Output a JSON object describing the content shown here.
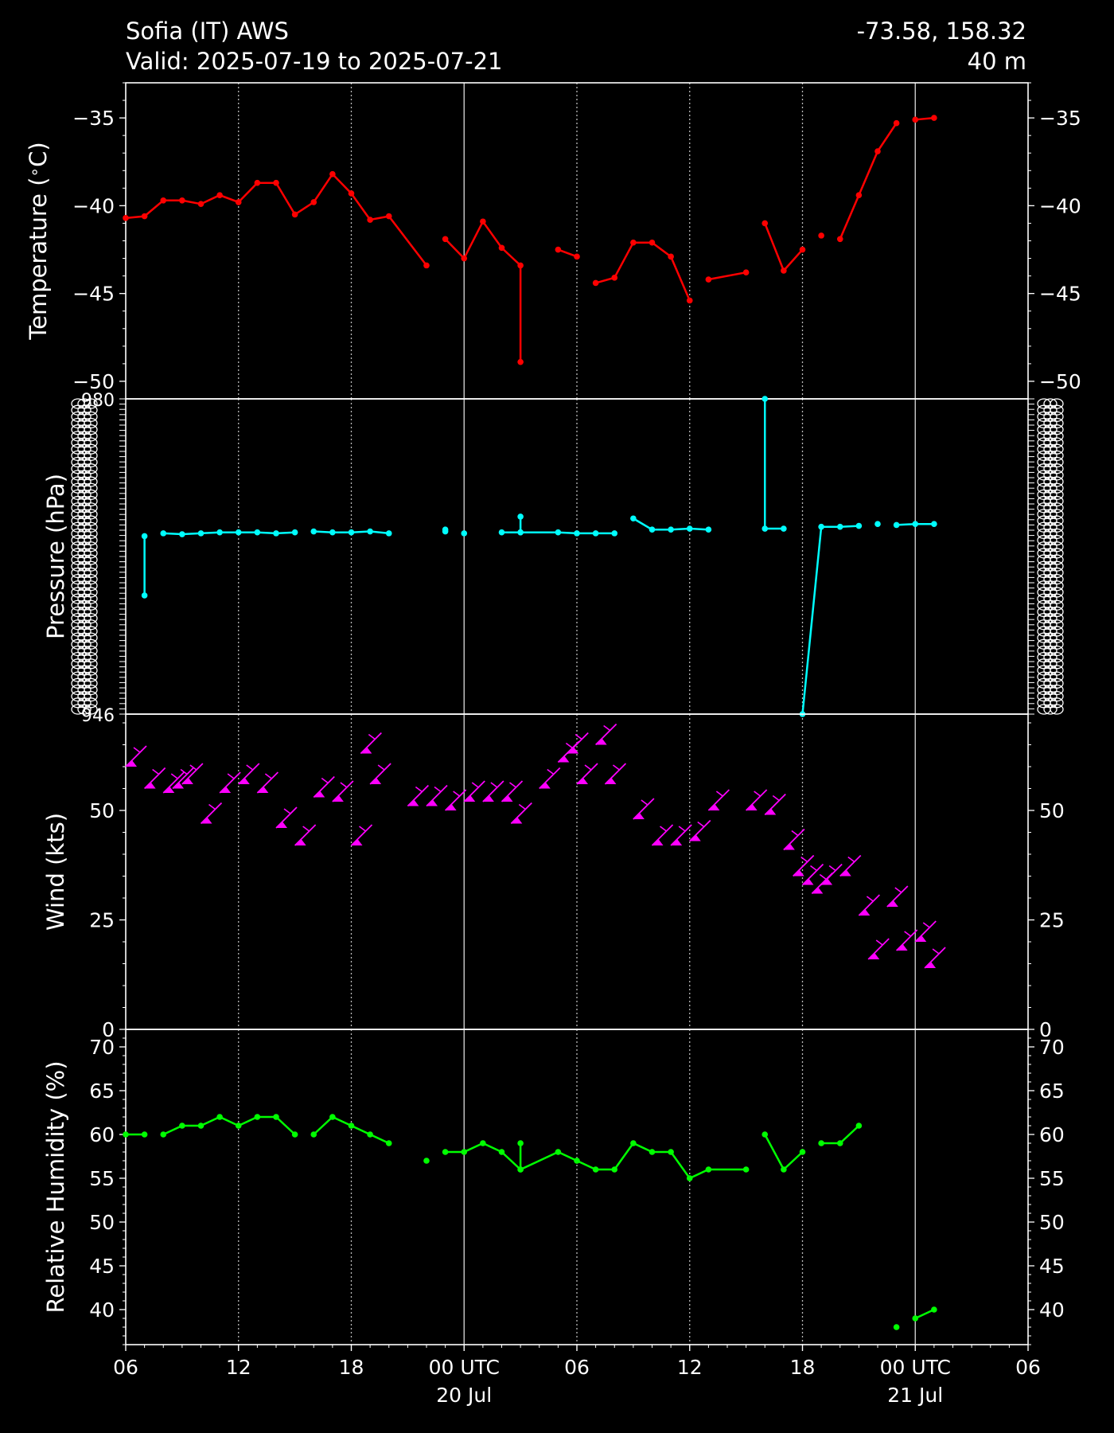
{
  "header": {
    "station": "Sofia (IT) AWS",
    "valid": "Valid: 2025-07-19 to 2025-07-21",
    "coords": "-73.58, 158.32",
    "elevation": "40 m"
  },
  "colors": {
    "background": "#000000",
    "temperature": "#ff0000",
    "pressure": "#00ffff",
    "wind": "#ff00ff",
    "humidity": "#00ff00",
    "grid_minor": "#bbbbbb",
    "grid_major": "#cccccc"
  },
  "chart_data": [
    {
      "type": "line",
      "panel": "temperature",
      "ylabel": "Temperature ($^\\circ$C)",
      "ylabel_display": "Temperature (",
      "ylabel_unit": "C)",
      "ylim": [
        -51,
        -33
      ],
      "yticks": [
        -50,
        -45,
        -40,
        -35
      ],
      "ytick_labels": [
        "−50",
        "−45",
        "−40",
        "−35"
      ],
      "segments": [
        [
          [
            6,
            -40.7
          ],
          [
            7,
            -40.6
          ],
          [
            8,
            -39.7
          ],
          [
            9,
            -39.7
          ],
          [
            10,
            -39.9
          ],
          [
            11,
            -39.4
          ],
          [
            12,
            -39.8
          ],
          [
            13,
            -38.7
          ],
          [
            14,
            -38.7
          ],
          [
            15,
            -40.5
          ],
          [
            16,
            -39.8
          ],
          [
            17,
            -38.2
          ],
          [
            18,
            -39.3
          ],
          [
            19,
            -40.8
          ],
          [
            20,
            -40.6
          ],
          [
            22,
            -43.4
          ]
        ],
        [
          [
            23,
            -41.9
          ],
          [
            24,
            -43.0
          ],
          [
            25,
            -40.9
          ],
          [
            26,
            -42.4
          ],
          [
            27,
            -43.4
          ],
          [
            27,
            -48.9
          ]
        ],
        [
          [
            29,
            -42.5
          ],
          [
            30,
            -42.9
          ]
        ],
        [
          [
            31,
            -44.4
          ],
          [
            32,
            -44.1
          ],
          [
            33,
            -42.1
          ],
          [
            34,
            -42.1
          ],
          [
            35,
            -42.9
          ],
          [
            36,
            -45.4
          ]
        ],
        [
          [
            37,
            -44.2
          ],
          [
            39,
            -43.8
          ]
        ],
        [
          [
            40,
            -41.0
          ],
          [
            41,
            -43.7
          ],
          [
            42,
            -42.5
          ]
        ],
        [
          [
            43,
            -41.7
          ]
        ],
        [
          [
            44,
            -41.9
          ],
          [
            45,
            -39.4
          ],
          [
            46,
            -36.9
          ],
          [
            47,
            -35.3
          ]
        ],
        [
          [
            48,
            -35.1
          ],
          [
            49,
            -35.0
          ]
        ]
      ]
    },
    {
      "type": "line",
      "panel": "pressure",
      "ylabel": "Pressure (hPa)",
      "ylim": [
        946,
        980
      ],
      "ytick_note": "dense overlapping tick labels",
      "ytick_label_top": "980",
      "ytick_label_bottom": "946",
      "segments": [
        [
          [
            7,
            965.2
          ],
          [
            7,
            958.8
          ]
        ],
        [
          [
            8,
            965.5
          ],
          [
            9,
            965.4
          ],
          [
            10,
            965.5
          ],
          [
            11,
            965.6
          ],
          [
            12,
            965.6
          ],
          [
            13,
            965.6
          ],
          [
            14,
            965.5
          ],
          [
            15,
            965.6
          ]
        ],
        [
          [
            16,
            965.7
          ],
          [
            17,
            965.6
          ],
          [
            18,
            965.6
          ],
          [
            19,
            965.7
          ],
          [
            20,
            965.5
          ]
        ],
        [
          [
            23,
            965.7
          ],
          [
            23,
            965.9
          ]
        ],
        [
          [
            24,
            965.5
          ]
        ],
        [
          [
            26,
            965.6
          ],
          [
            27,
            965.6
          ],
          [
            27,
            967.3
          ],
          [
            27,
            965.6
          ],
          [
            29,
            965.6
          ],
          [
            30,
            965.5
          ],
          [
            31,
            965.5
          ],
          [
            32,
            965.5
          ]
        ],
        [
          [
            33,
            967.1
          ],
          [
            34,
            965.9
          ],
          [
            35,
            965.9
          ],
          [
            36,
            966.0
          ],
          [
            37,
            965.9
          ]
        ],
        [
          [
            40,
            980.0
          ],
          [
            40,
            966.0
          ],
          [
            41,
            966.0
          ]
        ],
        [
          [
            42,
            946.0
          ],
          [
            43,
            966.2
          ],
          [
            44,
            966.2
          ],
          [
            45,
            966.3
          ]
        ],
        [
          [
            46,
            966.5
          ]
        ],
        [
          [
            47,
            966.4
          ],
          [
            48,
            966.5
          ],
          [
            49,
            966.5
          ]
        ]
      ]
    },
    {
      "type": "scatter",
      "panel": "wind",
      "subtype": "wind-barbs",
      "ylabel": "Wind (kts)",
      "ylim": [
        0,
        72
      ],
      "yticks": [
        0,
        25,
        50
      ],
      "points": [
        [
          6,
          60
        ],
        [
          7,
          55
        ],
        [
          8,
          54
        ],
        [
          8.5,
          55
        ],
        [
          9,
          56
        ],
        [
          10,
          47
        ],
        [
          11,
          54
        ],
        [
          12,
          56
        ],
        [
          13,
          54
        ],
        [
          14,
          46
        ],
        [
          15,
          42
        ],
        [
          16,
          53
        ],
        [
          17,
          52
        ],
        [
          18,
          42
        ],
        [
          18.5,
          63
        ],
        [
          19,
          56
        ],
        [
          21,
          51
        ],
        [
          22,
          51
        ],
        [
          23,
          50
        ],
        [
          24,
          52
        ],
        [
          25,
          52
        ],
        [
          26,
          52
        ],
        [
          26.5,
          47
        ],
        [
          28,
          55
        ],
        [
          29,
          61
        ],
        [
          29.5,
          63
        ],
        [
          30,
          56
        ],
        [
          31,
          65
        ],
        [
          31.5,
          56
        ],
        [
          33,
          48
        ],
        [
          34,
          42
        ],
        [
          35,
          42
        ],
        [
          36,
          43
        ],
        [
          37,
          50
        ],
        [
          39,
          50
        ],
        [
          40,
          49
        ],
        [
          41,
          41
        ],
        [
          41.5,
          35
        ],
        [
          42,
          33
        ],
        [
          42.5,
          31
        ],
        [
          43,
          33
        ],
        [
          44,
          35
        ],
        [
          45,
          26
        ],
        [
          45.5,
          16
        ],
        [
          46.5,
          28
        ],
        [
          47,
          18
        ],
        [
          48,
          20
        ],
        [
          48.5,
          14
        ]
      ]
    },
    {
      "type": "line",
      "panel": "humidity",
      "ylabel": "Relative Humidity (%)",
      "ylim": [
        36,
        72
      ],
      "yticks": [
        40,
        45,
        50,
        55,
        60,
        65,
        70
      ],
      "segments": [
        [
          [
            6,
            60
          ],
          [
            7,
            60
          ]
        ],
        [
          [
            8,
            60
          ],
          [
            9,
            61
          ],
          [
            10,
            61
          ],
          [
            11,
            62
          ],
          [
            12,
            61
          ],
          [
            13,
            62
          ],
          [
            14,
            62
          ],
          [
            15,
            60
          ]
        ],
        [
          [
            16,
            60
          ],
          [
            17,
            62
          ],
          [
            18,
            61
          ],
          [
            19,
            60
          ],
          [
            20,
            59
          ]
        ],
        [
          [
            22,
            57
          ]
        ],
        [
          [
            23,
            58
          ],
          [
            24,
            58
          ],
          [
            25,
            59
          ],
          [
            26,
            58
          ],
          [
            27,
            56
          ],
          [
            27,
            59
          ],
          [
            27,
            56
          ],
          [
            29,
            58
          ],
          [
            30,
            57
          ],
          [
            31,
            56
          ],
          [
            32,
            56
          ],
          [
            33,
            59
          ],
          [
            34,
            58
          ],
          [
            35,
            58
          ],
          [
            36,
            55
          ],
          [
            37,
            56
          ],
          [
            39,
            56
          ]
        ],
        [
          [
            40,
            60
          ],
          [
            41,
            56
          ],
          [
            42,
            58
          ]
        ],
        [
          [
            43,
            59
          ],
          [
            44,
            59
          ],
          [
            45,
            61
          ]
        ],
        [
          [
            47,
            38
          ]
        ],
        [
          [
            48,
            39
          ],
          [
            49,
            40
          ]
        ]
      ]
    }
  ],
  "xaxis": {
    "range_hours": [
      6,
      54
    ],
    "ticks": [
      {
        "h": 6,
        "label": "06",
        "sub": ""
      },
      {
        "h": 12,
        "label": "12",
        "sub": ""
      },
      {
        "h": 18,
        "label": "18",
        "sub": ""
      },
      {
        "h": 24,
        "label": "00 UTC",
        "sub": "20 Jul"
      },
      {
        "h": 30,
        "label": "06",
        "sub": ""
      },
      {
        "h": 36,
        "label": "12",
        "sub": ""
      },
      {
        "h": 42,
        "label": "18",
        "sub": ""
      },
      {
        "h": 48,
        "label": "00 UTC",
        "sub": "21 Jul"
      },
      {
        "h": 54,
        "label": "06",
        "sub": ""
      }
    ],
    "major_lines": [
      24,
      48
    ],
    "minor_lines": [
      12,
      18,
      30,
      36,
      42
    ]
  }
}
